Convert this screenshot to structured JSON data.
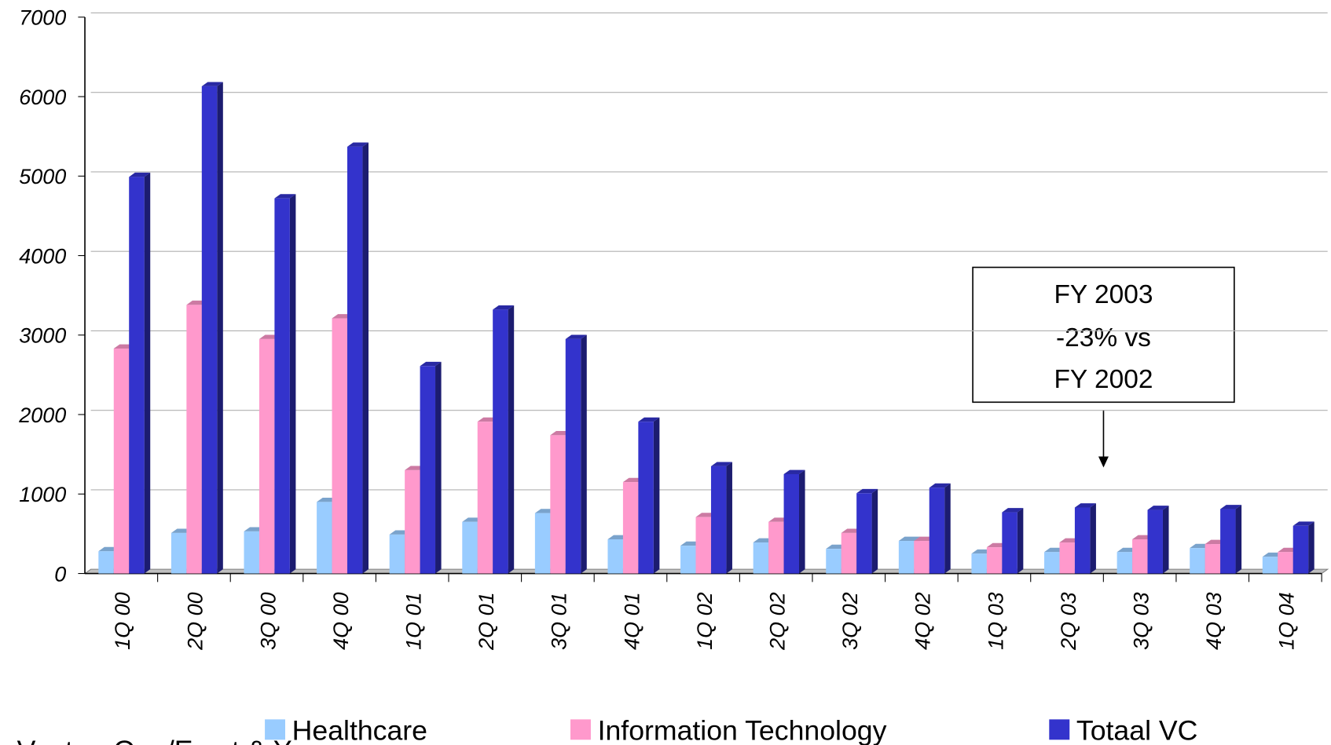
{
  "chart_data": {
    "type": "bar",
    "categories": [
      "1Q 00",
      "2Q 00",
      "3Q 00",
      "4Q 00",
      "1Q 01",
      "2Q 01",
      "3Q 01",
      "4Q 01",
      "1Q 02",
      "2Q 02",
      "3Q 02",
      "4Q 02",
      "1Q 03",
      "2Q 03",
      "3Q 03",
      "4Q 03",
      "1Q 04"
    ],
    "series": [
      {
        "name": "Healthcare",
        "color": "#99ccff",
        "values": [
          280,
          510,
          530,
          900,
          490,
          650,
          760,
          430,
          350,
          390,
          310,
          410,
          250,
          270,
          270,
          320,
          210
        ]
      },
      {
        "name": "Information Technology",
        "color": "#ff99cc",
        "values": [
          2830,
          3380,
          2950,
          3210,
          1300,
          1910,
          1740,
          1150,
          710,
          650,
          510,
          410,
          330,
          390,
          430,
          370,
          270
        ]
      },
      {
        "name": "Totaal VC",
        "color": "#3333cc",
        "values": [
          4990,
          6130,
          4720,
          5370,
          2610,
          3320,
          2950,
          1910,
          1350,
          1250,
          1010,
          1080,
          770,
          830,
          800,
          810,
          600
        ]
      }
    ],
    "ylim": [
      0,
      7000
    ],
    "yticks": [
      0,
      1000,
      2000,
      3000,
      4000,
      5000,
      6000,
      7000
    ],
    "grid": true,
    "annotation": {
      "lines": [
        "FY 2003",
        "-23% vs",
        "FY 2002"
      ]
    },
    "source": "VentureOne/Ernst & Young"
  }
}
